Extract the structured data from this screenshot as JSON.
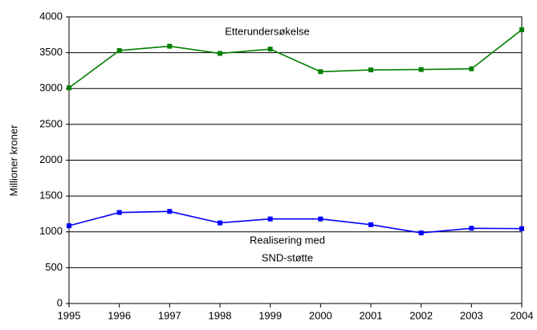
{
  "chart_data": {
    "type": "line",
    "y_label": "Millioner kroner",
    "x": [
      1995,
      1996,
      1997,
      1998,
      1999,
      2000,
      2001,
      2002,
      2003,
      2004
    ],
    "xlim": [
      1995,
      2004
    ],
    "xticks": [
      1995,
      1996,
      1997,
      1998,
      1999,
      2000,
      2001,
      2002,
      2003,
      2004
    ],
    "ylim": [
      0,
      4000
    ],
    "yticks": [
      0,
      500,
      1000,
      1500,
      2000,
      2500,
      3000,
      3500,
      4000
    ],
    "grid": true,
    "series": [
      {
        "color": "#008000",
        "values": [
          3010,
          3530,
          3590,
          3490,
          3550,
          3235,
          3260,
          3265,
          3275,
          3820
        ]
      },
      {
        "color": "#0000ff",
        "values": [
          1085,
          1270,
          1285,
          1125,
          1180,
          1180,
          1100,
          985,
          1050,
          1045
        ]
      }
    ],
    "annotations": [
      "Etterundersøkelse",
      "Realisering med",
      "SND-støtte"
    ]
  }
}
